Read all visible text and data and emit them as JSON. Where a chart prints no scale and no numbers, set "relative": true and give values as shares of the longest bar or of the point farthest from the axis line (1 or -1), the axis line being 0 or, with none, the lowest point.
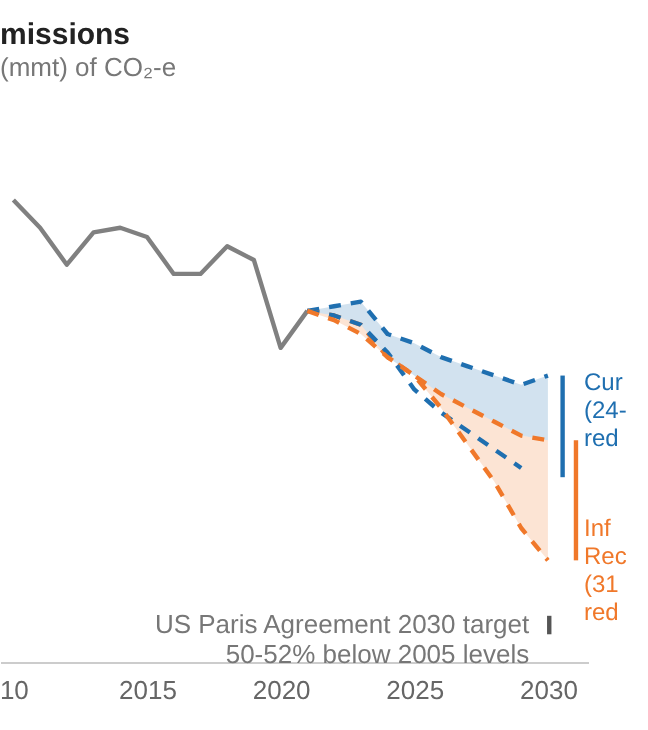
{
  "chart_data": {
    "type": "line",
    "title": "missions",
    "subtitle": "(mmt) of CO₂-e",
    "relative": true,
    "grid": false,
    "xlim": [
      2009.5,
      2031.5
    ],
    "xticks": [
      {
        "value": 2010,
        "label": "10"
      },
      2015,
      2020,
      2025,
      2030
    ],
    "series": [
      {
        "color": "#808080",
        "line_style": "solid",
        "x": [
          2010,
          2011,
          2012,
          2013,
          2014,
          2015,
          2016,
          2017,
          2018,
          2019,
          2020,
          2021
        ],
        "values": [
          1.0,
          0.94,
          0.86,
          0.93,
          0.94,
          0.92,
          0.84,
          0.84,
          0.9,
          0.87,
          0.68,
          0.76
        ]
      },
      {
        "color": "#1f6fb0",
        "line_style": "dashed",
        "x": [
          2021,
          2022,
          2023,
          2024,
          2025,
          2026,
          2027,
          2028,
          2029,
          2030
        ],
        "values": [
          0.76,
          0.77,
          0.78,
          0.71,
          0.69,
          0.66,
          0.64,
          0.62,
          0.6,
          0.62
        ],
        "upper": [
          0.76,
          0.77,
          0.78,
          0.71,
          0.69,
          0.66,
          0.64,
          0.62,
          0.6,
          0.62
        ],
        "lower": [
          0.76,
          0.75,
          0.73,
          0.66,
          0.62,
          0.58,
          0.55,
          0.52,
          0.49,
          0.48
        ]
      },
      {
        "color": "#f0782a",
        "line_style": "dashed",
        "x": [
          2021,
          2022,
          2023,
          2024,
          2025,
          2026,
          2027,
          2028,
          2029,
          2030
        ],
        "values": [
          0.76,
          0.75,
          0.73,
          0.66,
          0.62,
          0.58,
          0.55,
          0.52,
          0.49,
          0.48
        ]
      },
      {
        "color": "#1f6fb0",
        "line_style": "dashed",
        "x": [
          2021,
          2022,
          2023,
          2024,
          2025,
          2026,
          2027,
          2028,
          2029
        ],
        "values": [
          0.76,
          0.75,
          0.73,
          0.67,
          0.59,
          0.54,
          0.5,
          0.46,
          0.42
        ]
      },
      {
        "color": "#f0782a",
        "line_style": "dashed",
        "x": [
          2021,
          2022,
          2023,
          2024,
          2025,
          2026,
          2027,
          2028,
          2029,
          2030
        ],
        "values": [
          0.76,
          0.74,
          0.71,
          0.66,
          0.62,
          0.55,
          0.47,
          0.39,
          0.29,
          0.22
        ],
        "upper": [
          0.76,
          0.75,
          0.73,
          0.66,
          0.62,
          0.58,
          0.55,
          0.52,
          0.49,
          0.48
        ],
        "lower": [
          0.76,
          0.74,
          0.71,
          0.66,
          0.62,
          0.55,
          0.47,
          0.39,
          0.29,
          0.22
        ]
      },
      {
        "color": "#1f6fb0",
        "line_style": "solid",
        "x": [
          2030.55,
          2030.55
        ],
        "values": [
          0.62,
          0.4
        ]
      },
      {
        "color": "#f0782a",
        "line_style": "solid",
        "x": [
          2031.05,
          2031.05
        ],
        "values": [
          0.48,
          0.22
        ]
      },
      {
        "color": "#555555",
        "line_style": "solid",
        "x": [
          2030.05,
          2030.05
        ],
        "values": [
          0.1,
          0.06
        ]
      }
    ],
    "annotations": [
      "Cur\n(24-\nred",
      "Inf\nRec\n(31\nred",
      "US Paris Agreement 2030 target\n50-52% below 2005 levels"
    ]
  }
}
